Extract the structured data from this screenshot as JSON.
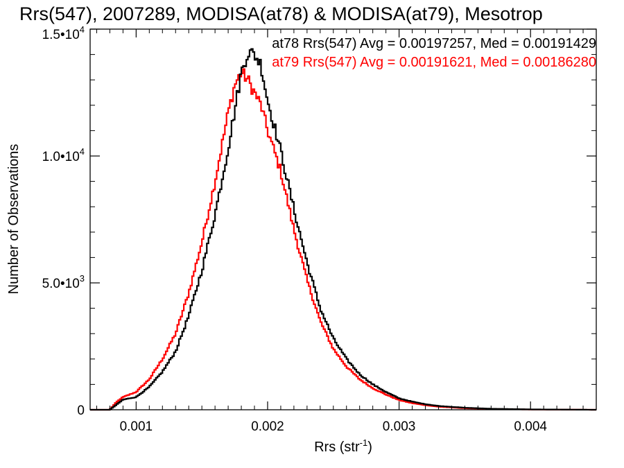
{
  "chart_data": {
    "type": "line",
    "title": "Rrs(547), 2007289, MODISA(at78) & MODISA(at79), Mesotrop",
    "xlabel_main": "Rrs (str",
    "xlabel_sup": "-1",
    "xlabel_close": ")",
    "ylabel": "Number of Observations",
    "xlim": [
      0.00065,
      0.0045
    ],
    "ylim": [
      0,
      15000
    ],
    "xticks": [
      {
        "value": 0.001,
        "label": "0.001"
      },
      {
        "value": 0.002,
        "label": "0.002"
      },
      {
        "value": 0.003,
        "label": "0.003"
      },
      {
        "value": 0.004,
        "label": "0.004"
      }
    ],
    "yticks": [
      {
        "value": 0,
        "mant": "0",
        "exp": ""
      },
      {
        "value": 5000,
        "mant": "5.0•10",
        "exp": "3"
      },
      {
        "value": 10000,
        "mant": "1.0•10",
        "exp": "4"
      },
      {
        "value": 15000,
        "mant": "1.5•10",
        "exp": "4"
      }
    ],
    "x": [
      0.00065,
      0.0008,
      0.00085,
      0.0009,
      0.001,
      0.0011,
      0.0012,
      0.0013,
      0.0014,
      0.0015,
      0.0016,
      0.0017,
      0.00175,
      0.0018,
      0.00185,
      0.0019,
      0.00195,
      0.002,
      0.0021,
      0.0022,
      0.0023,
      0.0024,
      0.0025,
      0.0026,
      0.0027,
      0.0028,
      0.0029,
      0.003,
      0.0031,
      0.0032,
      0.0033,
      0.0035,
      0.0037,
      0.004,
      0.0045
    ],
    "series": [
      {
        "name": "at78",
        "color": "#000000",
        "values": [
          0,
          0,
          200,
          400,
          500,
          900,
          1500,
          2300,
          3700,
          5500,
          7700,
          10300,
          11800,
          13300,
          14100,
          14000,
          13600,
          12200,
          10200,
          7900,
          5800,
          4000,
          2800,
          2000,
          1400,
          1000,
          700,
          450,
          320,
          220,
          150,
          80,
          40,
          15,
          0
        ]
      },
      {
        "name": "at79",
        "color": "#ff0000",
        "values": [
          0,
          0,
          300,
          500,
          700,
          1200,
          2000,
          3000,
          4600,
          6600,
          9000,
          11700,
          12800,
          13300,
          13000,
          12500,
          12000,
          11000,
          9400,
          7100,
          5100,
          3500,
          2400,
          1700,
          1200,
          850,
          600,
          380,
          260,
          180,
          120,
          60,
          30,
          10,
          0
        ]
      }
    ],
    "annotations": [
      {
        "text": "at78 Rrs(547) Avg = 0.00197257, Med = 0.00191429",
        "color": "#000000"
      },
      {
        "text": "at79 Rrs(547) Avg = 0.00191621, Med = 0.00186280",
        "color": "#ff0000"
      }
    ]
  }
}
